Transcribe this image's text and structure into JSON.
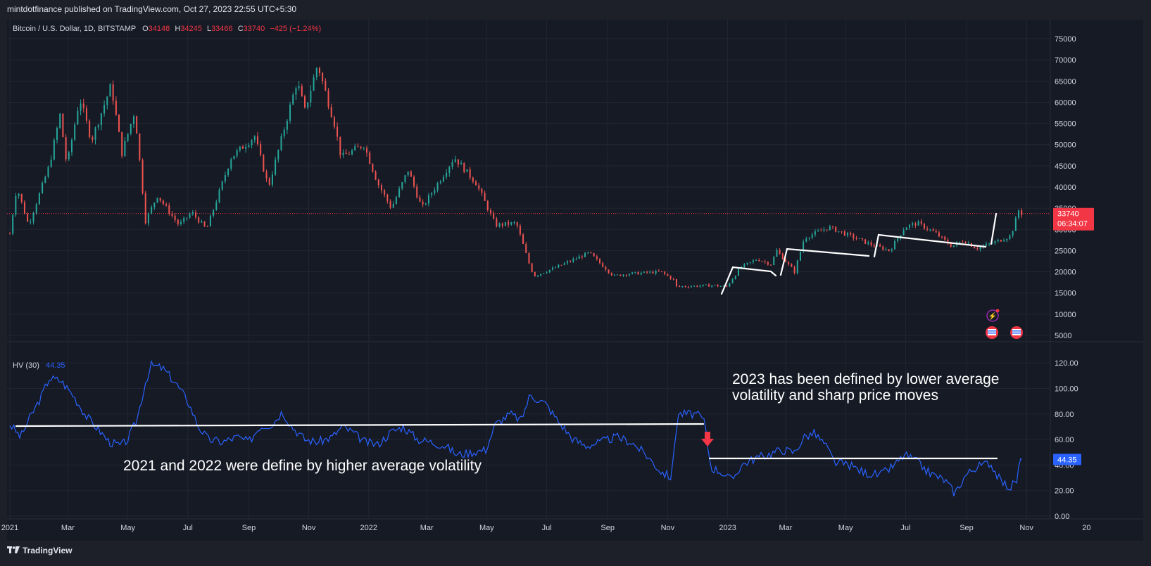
{
  "header": {
    "published": "mintdotfinance published on TradingView.com, Oct 27, 2023 22:55 UTC+5:30"
  },
  "legend": {
    "title": "Bitcoin / U.S. Dollar, 1D, BITSTAMP",
    "o_label": "O",
    "o": "34148",
    "h_label": "H",
    "h": "34245",
    "l_label": "L",
    "l": "33466",
    "c_label": "C",
    "c": "33740",
    "change": "−425 (−1.24%)"
  },
  "hv_legend": {
    "name": "HV (30)",
    "value": "44.35"
  },
  "price_badge": {
    "price": "33740",
    "countdown": "06:34:07"
  },
  "hv_badge": "44.35",
  "annotations": {
    "text_2023_line1": "2023 has been defined by lower average",
    "text_2023_line2": "volatility and sharp price moves",
    "text_2021": "2021 and 2022 were define by higher average volatility"
  },
  "footer": {
    "brand": "TradingView"
  },
  "colors": {
    "up": "#26a69a",
    "down": "#ef5350",
    "hv": "#2962ff",
    "badge": "#f23645",
    "background": "#161a25"
  },
  "chart_data": [
    {
      "type": "candlestick",
      "title": "Bitcoin / U.S. Dollar, 1D, BITSTAMP",
      "x_ticks": [
        "2021",
        "Mar",
        "May",
        "Jul",
        "Sep",
        "Nov",
        "2022",
        "Mar",
        "May",
        "Jul",
        "Sep",
        "Nov",
        "2023",
        "Mar",
        "May",
        "Jul",
        "Sep",
        "Nov",
        "20"
      ],
      "x_range": [
        "2021-01-01",
        "2023-12-31"
      ],
      "y_ticks": [
        5000,
        10000,
        15000,
        20000,
        25000,
        30000,
        35000,
        40000,
        45000,
        50000,
        55000,
        60000,
        65000,
        70000,
        75000
      ],
      "ylim": [
        4000,
        76500
      ],
      "last_price": 33740,
      "series": [
        {
          "name": "BTCUSD",
          "points": [
            [
              "2021-01-01",
              29000
            ],
            [
              "2021-01-08",
              40000
            ],
            [
              "2021-01-20",
              31000
            ],
            [
              "2021-02-10",
              45000
            ],
            [
              "2021-02-21",
              57000
            ],
            [
              "2021-02-28",
              45000
            ],
            [
              "2021-03-13",
              61000
            ],
            [
              "2021-03-25",
              51000
            ],
            [
              "2021-04-14",
              64000
            ],
            [
              "2021-04-25",
              48000
            ],
            [
              "2021-05-08",
              58000
            ],
            [
              "2021-05-19",
              32000
            ],
            [
              "2021-05-31",
              38000
            ],
            [
              "2021-06-22",
              31000
            ],
            [
              "2021-07-05",
              34000
            ],
            [
              "2021-07-20",
              30000
            ],
            [
              "2021-08-14",
              47000
            ],
            [
              "2021-09-07",
              52000
            ],
            [
              "2021-09-21",
              40000
            ],
            [
              "2021-10-20",
              65000
            ],
            [
              "2021-10-28",
              58000
            ],
            [
              "2021-11-10",
              69000
            ],
            [
              "2021-11-27",
              55000
            ],
            [
              "2021-12-04",
              47000
            ],
            [
              "2021-12-27",
              50000
            ],
            [
              "2022-01-10",
              41000
            ],
            [
              "2022-01-24",
              35000
            ],
            [
              "2022-02-10",
              44000
            ],
            [
              "2022-02-24",
              35000
            ],
            [
              "2022-03-29",
              47000
            ],
            [
              "2022-04-20",
              41000
            ],
            [
              "2022-05-10",
              31000
            ],
            [
              "2022-05-31",
              31500
            ],
            [
              "2022-06-13",
              22000
            ],
            [
              "2022-06-18",
              19000
            ],
            [
              "2022-07-10",
              21000
            ],
            [
              "2022-08-13",
              24500
            ],
            [
              "2022-09-07",
              19000
            ],
            [
              "2022-09-20",
              19500
            ],
            [
              "2022-10-25",
              20000
            ],
            [
              "2022-11-08",
              18000
            ],
            [
              "2022-11-10",
              16500
            ],
            [
              "2022-12-16",
              16800
            ],
            [
              "2022-12-31",
              16500
            ],
            [
              "2023-01-14",
              21000
            ],
            [
              "2023-01-31",
              23000
            ],
            [
              "2023-02-14",
              21800
            ],
            [
              "2023-02-20",
              25000
            ],
            [
              "2023-03-10",
              20000
            ],
            [
              "2023-03-20",
              28000
            ],
            [
              "2023-04-14",
              30500
            ],
            [
              "2023-04-30",
              29000
            ],
            [
              "2023-05-26",
              26500
            ],
            [
              "2023-06-15",
              25000
            ],
            [
              "2023-06-30",
              30500
            ],
            [
              "2023-07-13",
              31500
            ],
            [
              "2023-07-31",
              29200
            ],
            [
              "2023-08-17",
              26000
            ],
            [
              "2023-08-29",
              27500
            ],
            [
              "2023-09-11",
              25500
            ],
            [
              "2023-09-30",
              27000
            ],
            [
              "2023-10-16",
              28500
            ],
            [
              "2023-10-24",
              34500
            ],
            [
              "2023-10-27",
              33740
            ]
          ]
        }
      ]
    },
    {
      "type": "line",
      "title": "HV (30)",
      "y_ticks": [
        0,
        20,
        40,
        60,
        80,
        100,
        120
      ],
      "ylim": [
        0,
        130
      ],
      "last_value": 44.35,
      "series": [
        {
          "name": "HV (30)",
          "points": [
            [
              "2021-01-01",
              72
            ],
            [
              "2021-01-12",
              62
            ],
            [
              "2021-01-22",
              78
            ],
            [
              "2021-02-01",
              92
            ],
            [
              "2021-02-10",
              108
            ],
            [
              "2021-02-22",
              106
            ],
            [
              "2021-03-06",
              95
            ],
            [
              "2021-03-20",
              78
            ],
            [
              "2021-04-01",
              68
            ],
            [
              "2021-04-12",
              58
            ],
            [
              "2021-04-24",
              55
            ],
            [
              "2021-05-01",
              60
            ],
            [
              "2021-05-10",
              75
            ],
            [
              "2021-05-19",
              105
            ],
            [
              "2021-05-25",
              118
            ],
            [
              "2021-06-05",
              116
            ],
            [
              "2021-06-18",
              105
            ],
            [
              "2021-07-01",
              90
            ],
            [
              "2021-07-12",
              70
            ],
            [
              "2021-07-22",
              60
            ],
            [
              "2021-08-05",
              58
            ],
            [
              "2021-08-20",
              62
            ],
            [
              "2021-09-01",
              58
            ],
            [
              "2021-09-12",
              70
            ],
            [
              "2021-09-25",
              72
            ],
            [
              "2021-10-05",
              82
            ],
            [
              "2021-10-15",
              70
            ],
            [
              "2021-10-28",
              60
            ],
            [
              "2021-11-10",
              58
            ],
            [
              "2021-11-25",
              62
            ],
            [
              "2021-12-05",
              70
            ],
            [
              "2021-12-15",
              66
            ],
            [
              "2021-12-28",
              58
            ],
            [
              "2022-01-10",
              56
            ],
            [
              "2022-01-24",
              66
            ],
            [
              "2022-02-05",
              70
            ],
            [
              "2022-02-20",
              60
            ],
            [
              "2022-03-05",
              58
            ],
            [
              "2022-03-20",
              55
            ],
            [
              "2022-04-01",
              48
            ],
            [
              "2022-04-15",
              50
            ],
            [
              "2022-04-30",
              52
            ],
            [
              "2022-05-10",
              72
            ],
            [
              "2022-05-25",
              80
            ],
            [
              "2022-06-05",
              75
            ],
            [
              "2022-06-14",
              95
            ],
            [
              "2022-06-30",
              88
            ],
            [
              "2022-07-12",
              75
            ],
            [
              "2022-07-28",
              60
            ],
            [
              "2022-08-10",
              55
            ],
            [
              "2022-08-25",
              58
            ],
            [
              "2022-09-10",
              62
            ],
            [
              "2022-09-25",
              58
            ],
            [
              "2022-10-10",
              48
            ],
            [
              "2022-10-25",
              35
            ],
            [
              "2022-11-05",
              30
            ],
            [
              "2022-11-09",
              65
            ],
            [
              "2022-11-12",
              80
            ],
            [
              "2022-11-30",
              80
            ],
            [
              "2022-12-08",
              75
            ],
            [
              "2022-12-15",
              38
            ],
            [
              "2022-12-25",
              35
            ],
            [
              "2023-01-05",
              28
            ],
            [
              "2023-01-15",
              40
            ],
            [
              "2023-01-28",
              45
            ],
            [
              "2023-02-10",
              48
            ],
            [
              "2023-02-25",
              52
            ],
            [
              "2023-03-10",
              50
            ],
            [
              "2023-03-20",
              62
            ],
            [
              "2023-03-30",
              65
            ],
            [
              "2023-04-10",
              56
            ],
            [
              "2023-04-20",
              42
            ],
            [
              "2023-05-05",
              40
            ],
            [
              "2023-05-20",
              34
            ],
            [
              "2023-06-05",
              32
            ],
            [
              "2023-06-20",
              40
            ],
            [
              "2023-06-30",
              48
            ],
            [
              "2023-07-10",
              44
            ],
            [
              "2023-07-25",
              34
            ],
            [
              "2023-08-10",
              28
            ],
            [
              "2023-08-20",
              18
            ],
            [
              "2023-08-31",
              32
            ],
            [
              "2023-09-10",
              38
            ],
            [
              "2023-09-25",
              42
            ],
            [
              "2023-10-05",
              28
            ],
            [
              "2023-10-15",
              22
            ],
            [
              "2023-10-22",
              28
            ],
            [
              "2023-10-25",
              42
            ],
            [
              "2023-10-27",
              44.35
            ]
          ]
        }
      ]
    }
  ]
}
